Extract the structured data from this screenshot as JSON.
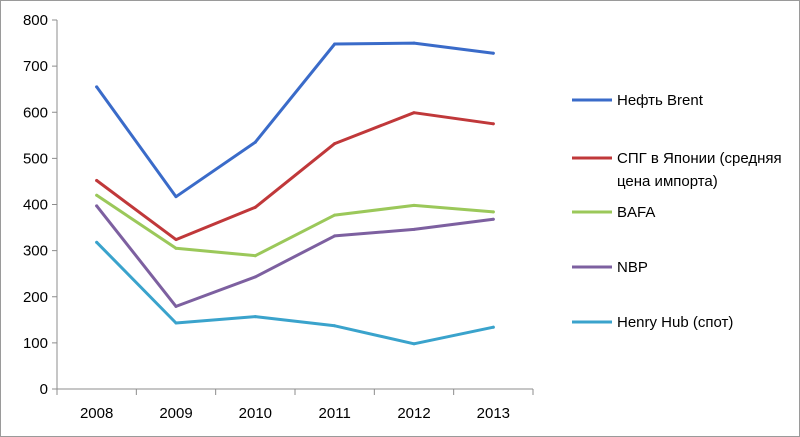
{
  "chart_data": {
    "type": "line",
    "title": "",
    "xlabel": "",
    "ylabel": "",
    "categories": [
      "2008",
      "2009",
      "2010",
      "2011",
      "2012",
      "2013"
    ],
    "ylim": [
      0,
      800
    ],
    "yticks": [
      0,
      100,
      200,
      300,
      400,
      500,
      600,
      700,
      800
    ],
    "grid": false,
    "legend_position": "right",
    "series": [
      {
        "name": "Нефть Brent",
        "color": "#3a6bc9",
        "values": [
          655,
          417,
          535,
          748,
          750,
          728
        ]
      },
      {
        "name": "СПГ в Японии (средняя цена импорта)",
        "legend_lines": [
          "СПГ в Японии (средняя",
          "цена импорта)"
        ],
        "color": "#c0383a",
        "values": [
          452,
          324,
          394,
          532,
          599,
          575
        ]
      },
      {
        "name": "BAFA",
        "color": "#9bc85a",
        "values": [
          420,
          305,
          289,
          377,
          398,
          384
        ]
      },
      {
        "name": "NBP",
        "color": "#7d60a0",
        "values": [
          397,
          179,
          243,
          332,
          346,
          368
        ]
      },
      {
        "name": "Henry Hub (спот)",
        "color": "#3aa3cc",
        "values": [
          318,
          143,
          157,
          137,
          98,
          134
        ]
      }
    ]
  }
}
